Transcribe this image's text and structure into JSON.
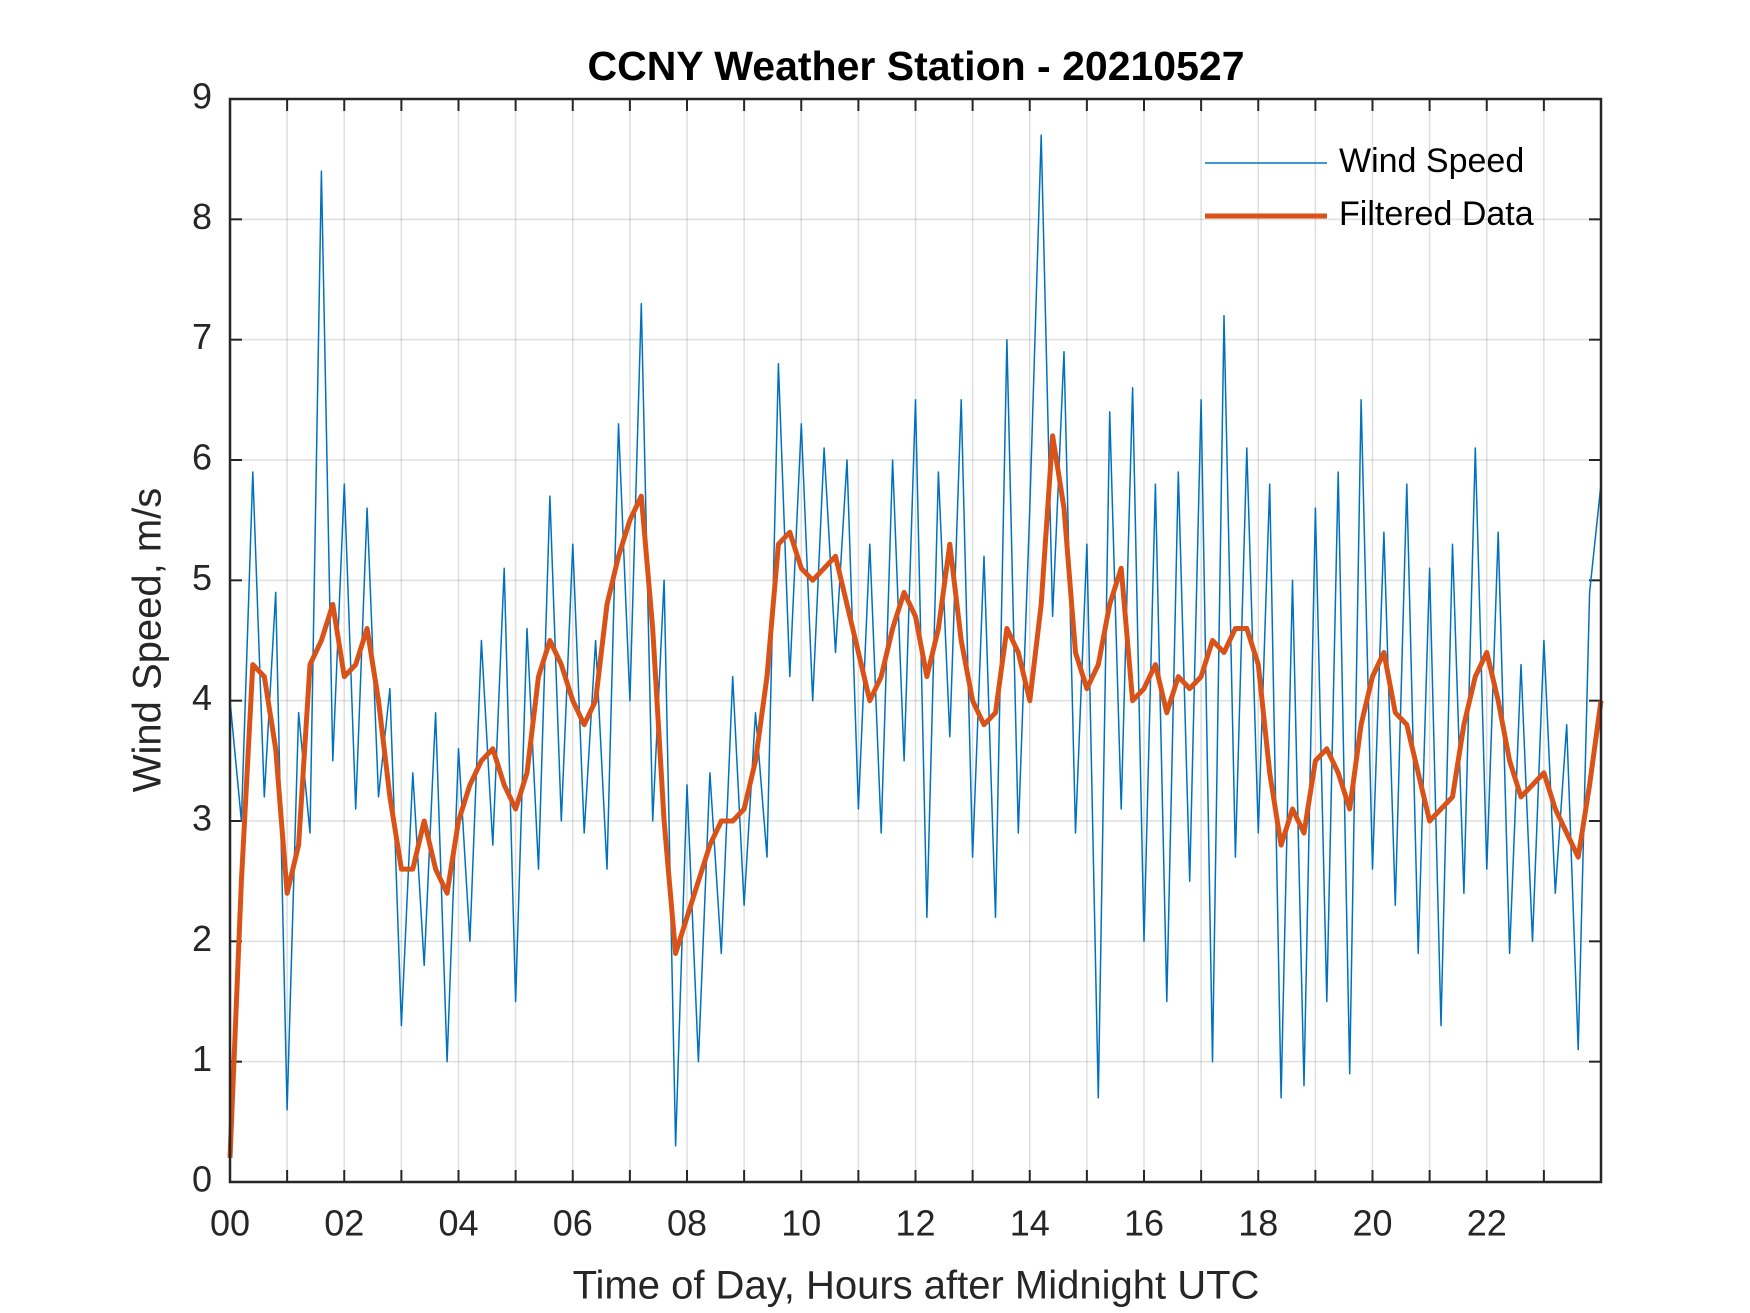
{
  "chart_data": {
    "type": "line",
    "title": "CCNY Weather Station - 20210527",
    "xlabel": "Time of Day, Hours after Midnight UTC",
    "ylabel": "Wind Speed, m/s",
    "x": [
      0,
      0.2,
      0.4,
      0.6,
      0.8,
      1,
      1.2,
      1.4,
      1.6,
      1.8,
      2,
      2.2,
      2.4,
      2.6,
      2.8,
      3,
      3.2,
      3.4,
      3.6,
      3.8,
      4,
      4.2,
      4.4,
      4.6,
      4.8,
      5,
      5.2,
      5.4,
      5.6,
      5.8,
      6,
      6.2,
      6.4,
      6.6,
      6.8,
      7,
      7.2,
      7.4,
      7.6,
      7.8,
      8,
      8.2,
      8.4,
      8.6,
      8.8,
      9,
      9.2,
      9.4,
      9.6,
      9.8,
      10,
      10.2,
      10.4,
      10.6,
      10.8,
      11,
      11.2,
      11.4,
      11.6,
      11.8,
      12,
      12.2,
      12.4,
      12.6,
      12.8,
      13,
      13.2,
      13.4,
      13.6,
      13.8,
      14,
      14.2,
      14.4,
      14.6,
      14.8,
      15,
      15.2,
      15.4,
      15.6,
      15.8,
      16,
      16.2,
      16.4,
      16.6,
      16.8,
      17,
      17.2,
      17.4,
      17.6,
      17.8,
      18,
      18.2,
      18.4,
      18.6,
      18.8,
      19,
      19.2,
      19.4,
      19.6,
      19.8,
      20,
      20.2,
      20.4,
      20.6,
      20.8,
      21,
      21.2,
      21.4,
      21.6,
      21.8,
      22,
      22.2,
      22.4,
      22.6,
      22.8,
      23,
      23.2,
      23.4,
      23.6,
      23.8,
      24
    ],
    "series": [
      {
        "name": "Wind Speed",
        "color": "#0072BD",
        "width": 1.5,
        "values": [
          4.0,
          3.0,
          5.9,
          3.2,
          4.9,
          0.6,
          3.9,
          2.9,
          8.4,
          3.5,
          5.8,
          3.1,
          5.6,
          3.2,
          4.1,
          1.3,
          3.4,
          1.8,
          3.9,
          1.0,
          3.6,
          2.0,
          4.5,
          2.8,
          5.1,
          1.5,
          4.6,
          2.6,
          5.7,
          3.0,
          5.3,
          2.9,
          4.5,
          2.6,
          6.3,
          4.0,
          7.3,
          3.0,
          5.0,
          0.3,
          3.3,
          1.0,
          3.4,
          1.9,
          4.2,
          2.3,
          3.9,
          2.7,
          6.8,
          4.2,
          6.3,
          4.0,
          6.1,
          4.4,
          6.0,
          3.1,
          5.3,
          2.9,
          6.0,
          3.5,
          6.5,
          2.2,
          5.9,
          3.7,
          6.5,
          2.7,
          5.2,
          2.2,
          7.0,
          2.9,
          5.6,
          8.7,
          4.7,
          6.9,
          2.9,
          5.3,
          0.7,
          6.4,
          3.1,
          6.6,
          2.0,
          5.8,
          1.5,
          5.9,
          2.5,
          6.5,
          1.0,
          7.2,
          2.7,
          6.1,
          2.9,
          5.8,
          0.7,
          5.0,
          0.8,
          5.6,
          1.5,
          5.9,
          0.9,
          6.5,
          2.6,
          5.4,
          2.3,
          5.8,
          1.9,
          5.1,
          1.3,
          5.3,
          2.4,
          6.1,
          2.6,
          5.4,
          1.9,
          4.3,
          2.0,
          4.5,
          2.4,
          3.8,
          1.1,
          4.9,
          5.8
        ]
      },
      {
        "name": "Filtered Data",
        "color": "#D95319",
        "width": 5,
        "values": [
          0.2,
          2.5,
          4.3,
          4.2,
          3.6,
          2.4,
          2.8,
          4.3,
          4.5,
          4.8,
          4.2,
          4.3,
          4.6,
          4.0,
          3.2,
          2.6,
          2.6,
          3.0,
          2.6,
          2.4,
          3.0,
          3.3,
          3.5,
          3.6,
          3.3,
          3.1,
          3.4,
          4.2,
          4.5,
          4.3,
          4.0,
          3.8,
          4.0,
          4.8,
          5.2,
          5.5,
          5.7,
          4.6,
          3.0,
          1.9,
          2.2,
          2.5,
          2.8,
          3.0,
          3.0,
          3.1,
          3.5,
          4.2,
          5.3,
          5.4,
          5.1,
          5.0,
          5.1,
          5.2,
          4.8,
          4.4,
          4.0,
          4.2,
          4.6,
          4.9,
          4.7,
          4.2,
          4.6,
          5.3,
          4.5,
          4.0,
          3.8,
          3.9,
          4.6,
          4.4,
          4.0,
          4.8,
          6.2,
          5.6,
          4.4,
          4.1,
          4.3,
          4.8,
          5.1,
          4.0,
          4.1,
          4.3,
          3.9,
          4.2,
          4.1,
          4.2,
          4.5,
          4.4,
          4.6,
          4.6,
          4.3,
          3.4,
          2.8,
          3.1,
          2.9,
          3.5,
          3.6,
          3.4,
          3.1,
          3.8,
          4.2,
          4.4,
          3.9,
          3.8,
          3.4,
          3.0,
          3.1,
          3.2,
          3.8,
          4.2,
          4.4,
          4.0,
          3.5,
          3.2,
          3.3,
          3.4,
          3.1,
          2.9,
          2.7,
          3.3,
          4.0
        ]
      }
    ],
    "xlim": [
      0,
      24
    ],
    "xticks": [
      {
        "value": 0,
        "label": "00"
      },
      {
        "value": 2,
        "label": "02"
      },
      {
        "value": 4,
        "label": "04"
      },
      {
        "value": 6,
        "label": "06"
      },
      {
        "value": 8,
        "label": "08"
      },
      {
        "value": 10,
        "label": "10"
      },
      {
        "value": 12,
        "label": "12"
      },
      {
        "value": 14,
        "label": "14"
      },
      {
        "value": 16,
        "label": "16"
      },
      {
        "value": 18,
        "label": "18"
      },
      {
        "value": 20,
        "label": "20"
      },
      {
        "value": 22,
        "label": "22"
      }
    ],
    "xminorticks": [
      1,
      3,
      5,
      7,
      9,
      11,
      13,
      15,
      17,
      19,
      21,
      23
    ],
    "ylim": [
      0,
      9
    ],
    "yticks": [
      0,
      1,
      2,
      3,
      4,
      5,
      6,
      7,
      8,
      9
    ],
    "grid": true,
    "legend": "northeast"
  }
}
